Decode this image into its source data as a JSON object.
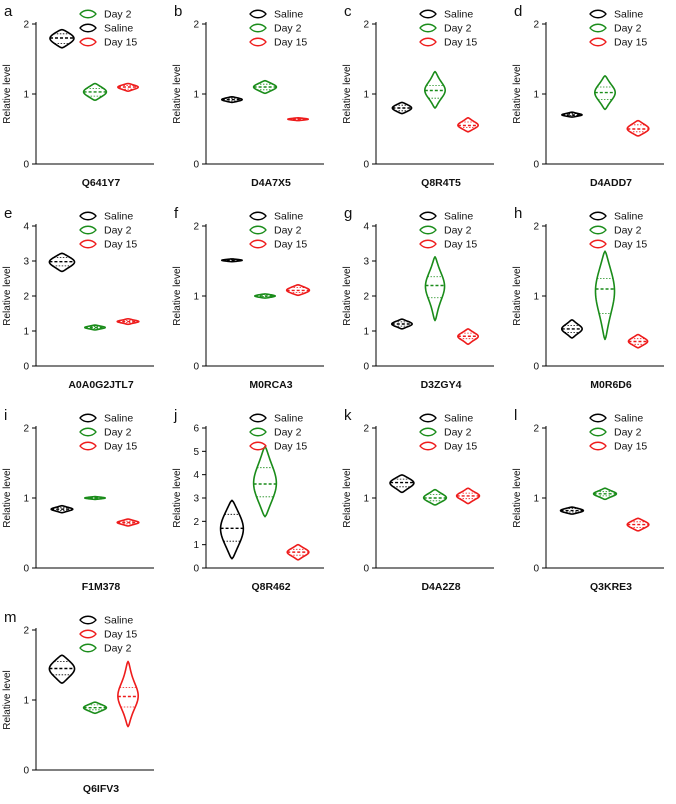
{
  "chart_data": [
    {
      "panel": "a",
      "type": "violin",
      "title": "Q641Y7",
      "ylabel": "Relative level",
      "ylim": [
        0,
        2
      ],
      "yticks": [
        0,
        1,
        2
      ],
      "legend": [
        "Day 2",
        "Saline",
        "Day 15"
      ],
      "series": [
        {
          "name": "Saline",
          "color": "#000000",
          "median": 1.8,
          "q1": 1.72,
          "q3": 1.86,
          "min": 1.66,
          "max": 1.92,
          "width": 0.4
        },
        {
          "name": "Day 2",
          "color": "#1a8c1a",
          "median": 1.03,
          "q1": 0.97,
          "q3": 1.08,
          "min": 0.91,
          "max": 1.15,
          "width": 0.38
        },
        {
          "name": "Day 15",
          "color": "#ee1c1c",
          "median": 1.1,
          "q1": 1.07,
          "q3": 1.12,
          "min": 1.04,
          "max": 1.15,
          "width": 0.34
        }
      ]
    },
    {
      "panel": "b",
      "type": "violin",
      "title": "D4A7X5",
      "ylabel": "Relative level",
      "ylim": [
        0,
        2
      ],
      "yticks": [
        0,
        1,
        2
      ],
      "legend": [
        "Saline",
        "Day 2",
        "Day 15"
      ],
      "series": [
        {
          "name": "Saline",
          "color": "#000000",
          "median": 0.92,
          "q1": 0.9,
          "q3": 0.94,
          "min": 0.88,
          "max": 0.96,
          "width": 0.34
        },
        {
          "name": "Day 2",
          "color": "#1a8c1a",
          "median": 1.1,
          "q1": 1.06,
          "q3": 1.14,
          "min": 1.01,
          "max": 1.19,
          "width": 0.38
        },
        {
          "name": "Day 15",
          "color": "#ee1c1c",
          "median": 0.64,
          "q1": 0.63,
          "q3": 0.65,
          "min": 0.62,
          "max": 0.66,
          "width": 0.34
        }
      ]
    },
    {
      "panel": "c",
      "type": "violin",
      "title": "Q8R4T5",
      "ylabel": "Relative level",
      "ylim": [
        0,
        2
      ],
      "yticks": [
        0,
        1,
        2
      ],
      "legend": [
        "Saline",
        "Day 2",
        "Day 15"
      ],
      "series": [
        {
          "name": "Saline",
          "color": "#000000",
          "median": 0.8,
          "q1": 0.76,
          "q3": 0.84,
          "min": 0.72,
          "max": 0.88,
          "width": 0.32
        },
        {
          "name": "Day 2",
          "color": "#1a8c1a",
          "median": 1.05,
          "q1": 0.94,
          "q3": 1.12,
          "min": 0.8,
          "max": 1.32,
          "width": 0.34
        },
        {
          "name": "Day 15",
          "color": "#ee1c1c",
          "median": 0.55,
          "q1": 0.52,
          "q3": 0.6,
          "min": 0.46,
          "max": 0.66,
          "width": 0.34
        }
      ]
    },
    {
      "panel": "d",
      "type": "violin",
      "title": "D4ADD7",
      "ylabel": "Relative level",
      "ylim": [
        0,
        2
      ],
      "yticks": [
        0,
        1,
        2
      ],
      "legend": [
        "Saline",
        "Day 2",
        "Day 15"
      ],
      "series": [
        {
          "name": "Saline",
          "color": "#000000",
          "median": 0.7,
          "q1": 0.69,
          "q3": 0.72,
          "min": 0.67,
          "max": 0.74,
          "width": 0.34
        },
        {
          "name": "Day 2",
          "color": "#1a8c1a",
          "median": 1.02,
          "q1": 0.92,
          "q3": 1.1,
          "min": 0.78,
          "max": 1.26,
          "width": 0.34
        },
        {
          "name": "Day 15",
          "color": "#ee1c1c",
          "median": 0.5,
          "q1": 0.46,
          "q3": 0.56,
          "min": 0.4,
          "max": 0.62,
          "width": 0.36
        }
      ]
    },
    {
      "panel": "e",
      "type": "violin",
      "title": "A0A0G2JTL7",
      "ylabel": "Relative level",
      "ylim": [
        0,
        4
      ],
      "yticks": [
        0,
        1,
        2,
        3,
        4
      ],
      "legend": [
        "Saline",
        "Day 2",
        "Day 15"
      ],
      "series": [
        {
          "name": "Saline",
          "color": "#000000",
          "median": 2.98,
          "q1": 2.86,
          "q3": 3.1,
          "min": 2.7,
          "max": 3.22,
          "width": 0.42
        },
        {
          "name": "Day 2",
          "color": "#1a8c1a",
          "median": 1.1,
          "q1": 1.07,
          "q3": 1.13,
          "min": 1.03,
          "max": 1.17,
          "width": 0.34
        },
        {
          "name": "Day 15",
          "color": "#ee1c1c",
          "median": 1.27,
          "q1": 1.24,
          "q3": 1.3,
          "min": 1.19,
          "max": 1.35,
          "width": 0.36
        }
      ]
    },
    {
      "panel": "f",
      "type": "violin",
      "title": "M0RCA3",
      "ylabel": "Relative level",
      "ylim": [
        0,
        2
      ],
      "yticks": [
        0,
        1,
        2
      ],
      "legend": [
        "Saline",
        "Day 2",
        "Day 15"
      ],
      "series": [
        {
          "name": "Saline",
          "color": "#000000",
          "median": 1.51,
          "q1": 1.5,
          "q3": 1.52,
          "min": 1.49,
          "max": 1.53,
          "width": 0.34
        },
        {
          "name": "Day 2",
          "color": "#1a8c1a",
          "median": 1.0,
          "q1": 0.99,
          "q3": 1.02,
          "min": 0.97,
          "max": 1.03,
          "width": 0.34
        },
        {
          "name": "Day 15",
          "color": "#ee1c1c",
          "median": 1.08,
          "q1": 1.05,
          "q3": 1.12,
          "min": 1.01,
          "max": 1.16,
          "width": 0.38
        }
      ]
    },
    {
      "panel": "g",
      "type": "violin",
      "title": "D3ZGY4",
      "ylabel": "Relative level",
      "ylim": [
        0,
        4
      ],
      "yticks": [
        0,
        1,
        2,
        3,
        4
      ],
      "legend": [
        "Saline",
        "Day 2",
        "Day 15"
      ],
      "series": [
        {
          "name": "Saline",
          "color": "#000000",
          "median": 1.2,
          "q1": 1.14,
          "q3": 1.26,
          "min": 1.06,
          "max": 1.34,
          "width": 0.34
        },
        {
          "name": "Day 2",
          "color": "#1a8c1a",
          "median": 2.3,
          "q1": 1.95,
          "q3": 2.55,
          "min": 1.3,
          "max": 3.12,
          "width": 0.32
        },
        {
          "name": "Day 15",
          "color": "#ee1c1c",
          "median": 0.85,
          "q1": 0.78,
          "q3": 0.94,
          "min": 0.62,
          "max": 1.06,
          "width": 0.34
        }
      ]
    },
    {
      "panel": "h",
      "type": "violin",
      "title": "M0R6D6",
      "ylabel": "Relative level",
      "ylim": [
        0,
        2
      ],
      "yticks": [
        0,
        1,
        2
      ],
      "legend": [
        "Saline",
        "Day 2",
        "Day 15"
      ],
      "series": [
        {
          "name": "Saline",
          "color": "#000000",
          "median": 0.53,
          "q1": 0.48,
          "q3": 0.58,
          "min": 0.4,
          "max": 0.66,
          "width": 0.34
        },
        {
          "name": "Day 2",
          "color": "#1a8c1a",
          "median": 1.1,
          "q1": 0.75,
          "q3": 1.25,
          "min": 0.38,
          "max": 1.64,
          "width": 0.32
        },
        {
          "name": "Day 15",
          "color": "#ee1c1c",
          "median": 0.35,
          "q1": 0.31,
          "q3": 0.39,
          "min": 0.26,
          "max": 0.45,
          "width": 0.32
        }
      ]
    },
    {
      "panel": "i",
      "type": "violin",
      "title": "F1M378",
      "ylabel": "Relative level",
      "ylim": [
        0,
        2
      ],
      "yticks": [
        0,
        1,
        2
      ],
      "legend": [
        "Saline",
        "Day 2",
        "Day 15"
      ],
      "series": [
        {
          "name": "Saline",
          "color": "#000000",
          "median": 0.84,
          "q1": 0.82,
          "q3": 0.86,
          "min": 0.79,
          "max": 0.89,
          "width": 0.36
        },
        {
          "name": "Day 2",
          "color": "#1a8c1a",
          "median": 1.0,
          "q1": 0.99,
          "q3": 1.01,
          "min": 0.98,
          "max": 1.02,
          "width": 0.34
        },
        {
          "name": "Day 15",
          "color": "#ee1c1c",
          "median": 0.65,
          "q1": 0.63,
          "q3": 0.67,
          "min": 0.6,
          "max": 0.7,
          "width": 0.36
        }
      ]
    },
    {
      "panel": "j",
      "type": "violin",
      "title": "Q8R462",
      "ylabel": "Relative level",
      "ylim": [
        0,
        6
      ],
      "yticks": [
        0,
        1,
        2,
        3,
        4,
        5,
        6
      ],
      "legend": [
        "Saline",
        "Day 2",
        "Day 15"
      ],
      "series": [
        {
          "name": "Saline",
          "color": "#000000",
          "median": 1.7,
          "q1": 1.15,
          "q3": 2.3,
          "min": 0.4,
          "max": 2.9,
          "width": 0.38
        },
        {
          "name": "Day 2",
          "color": "#1a8c1a",
          "median": 3.6,
          "q1": 3.05,
          "q3": 4.3,
          "min": 2.2,
          "max": 5.2,
          "width": 0.38
        },
        {
          "name": "Day 15",
          "color": "#ee1c1c",
          "median": 0.68,
          "q1": 0.55,
          "q3": 0.8,
          "min": 0.35,
          "max": 1.0,
          "width": 0.36
        }
      ]
    },
    {
      "panel": "k",
      "type": "violin",
      "title": "D4A2Z8",
      "ylabel": "Relative level",
      "ylim": [
        0,
        2
      ],
      "yticks": [
        0,
        1,
        2
      ],
      "legend": [
        "Saline",
        "Day 2",
        "Day 15"
      ],
      "series": [
        {
          "name": "Saline",
          "color": "#000000",
          "median": 1.22,
          "q1": 1.16,
          "q3": 1.27,
          "min": 1.08,
          "max": 1.33,
          "width": 0.4
        },
        {
          "name": "Day 2",
          "color": "#1a8c1a",
          "median": 1.0,
          "q1": 0.96,
          "q3": 1.05,
          "min": 0.9,
          "max": 1.12,
          "width": 0.38
        },
        {
          "name": "Day 15",
          "color": "#ee1c1c",
          "median": 1.03,
          "q1": 0.99,
          "q3": 1.07,
          "min": 0.92,
          "max": 1.14,
          "width": 0.38
        }
      ]
    },
    {
      "panel": "l",
      "type": "violin",
      "title": "Q3KRE3",
      "ylabel": "Relative level",
      "ylim": [
        0,
        2
      ],
      "yticks": [
        0,
        1,
        2
      ],
      "legend": [
        "Saline",
        "Day 2",
        "Day 15"
      ],
      "series": [
        {
          "name": "Saline",
          "color": "#000000",
          "median": 0.82,
          "q1": 0.8,
          "q3": 0.85,
          "min": 0.77,
          "max": 0.87,
          "width": 0.38
        },
        {
          "name": "Day 2",
          "color": "#1a8c1a",
          "median": 1.06,
          "q1": 1.03,
          "q3": 1.09,
          "min": 0.98,
          "max": 1.14,
          "width": 0.38
        },
        {
          "name": "Day 15",
          "color": "#ee1c1c",
          "median": 0.62,
          "q1": 0.58,
          "q3": 0.66,
          "min": 0.53,
          "max": 0.71,
          "width": 0.36
        }
      ]
    },
    {
      "panel": "m",
      "type": "violin",
      "title": "Q6IFV3",
      "ylabel": "Relative level",
      "ylim": [
        0,
        2
      ],
      "yticks": [
        0,
        1,
        2
      ],
      "legend": [
        "Saline",
        "Day 15",
        "Day 2"
      ],
      "series": [
        {
          "name": "Saline",
          "color": "#000000",
          "median": 1.45,
          "q1": 1.36,
          "q3": 1.55,
          "min": 1.24,
          "max": 1.64,
          "width": 0.42
        },
        {
          "name": "Day 2",
          "color": "#1a8c1a",
          "median": 0.89,
          "q1": 0.86,
          "q3": 0.93,
          "min": 0.81,
          "max": 0.97,
          "width": 0.38
        },
        {
          "name": "Day 15",
          "color": "#ee1c1c",
          "median": 1.05,
          "q1": 0.9,
          "q3": 1.18,
          "min": 0.62,
          "max": 1.55,
          "width": 0.34
        }
      ]
    }
  ]
}
